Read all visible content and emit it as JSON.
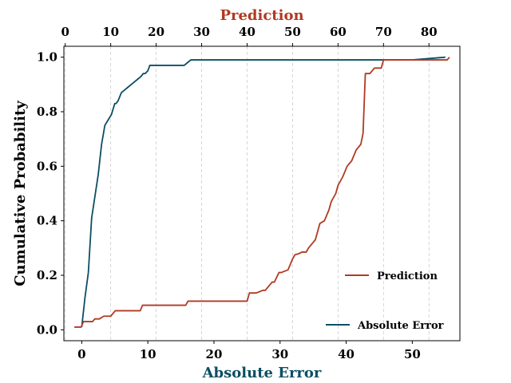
{
  "chart_data": {
    "type": "line",
    "xlabel": "Absolute Error",
    "x2label": "Prediction",
    "ylabel": "Cumulative Probability",
    "xlim": [
      -2.7,
      57.2
    ],
    "x2lim": [
      -0.3,
      86.8
    ],
    "ylim": [
      -0.04,
      1.04
    ],
    "xticks": [
      0,
      10,
      20,
      30,
      40,
      50
    ],
    "x2ticks": [
      0,
      10,
      20,
      30,
      40,
      50,
      60,
      70,
      80
    ],
    "yticks": [
      0.0,
      0.2,
      0.4,
      0.6,
      0.8,
      1.0
    ],
    "x2grid": true,
    "series": [
      {
        "name": "Absolute Error",
        "axis": "bottom",
        "color": "#0b4f63",
        "legend_position": "lower-right",
        "x": [
          0.0,
          0.5,
          1.0,
          1.5,
          2.0,
          2.5,
          3.0,
          3.5,
          4.0,
          4.5,
          5.0,
          5.2,
          5.5,
          6.0,
          6.5,
          7.0,
          7.5,
          8.0,
          8.5,
          9.0,
          9.3,
          9.6,
          10.0,
          10.3,
          11.0,
          12.0,
          13.0,
          14.0,
          15.0,
          15.5,
          16.0,
          16.5,
          17.0,
          20.0,
          30.0,
          40.0,
          50.0,
          55.0
        ],
        "y": [
          0.01,
          0.12,
          0.21,
          0.41,
          0.49,
          0.57,
          0.68,
          0.75,
          0.77,
          0.79,
          0.83,
          0.83,
          0.84,
          0.87,
          0.88,
          0.89,
          0.9,
          0.91,
          0.92,
          0.93,
          0.94,
          0.94,
          0.95,
          0.97,
          0.97,
          0.97,
          0.97,
          0.97,
          0.97,
          0.97,
          0.98,
          0.99,
          0.99,
          0.99,
          0.99,
          0.99,
          0.99,
          1.0
        ]
      },
      {
        "name": "Prediction",
        "axis": "top",
        "color": "#b03a23",
        "legend_position": "center-right",
        "x": [
          2.0,
          3.5,
          4.0,
          6.0,
          6.5,
          7.5,
          8.5,
          10.0,
          11.0,
          11.5,
          15.0,
          16.5,
          17.0,
          18.0,
          21.0,
          26.5,
          27.0,
          30.0,
          38.0,
          40.0,
          40.5,
          42.0,
          43.5,
          44.0,
          45.5,
          46.0,
          47.0,
          47.5,
          49.0,
          50.0,
          50.5,
          51.5,
          52.0,
          53.0,
          53.5,
          55.0,
          56.0,
          57.0,
          58.0,
          58.5,
          59.5,
          60.0,
          61.0,
          61.5,
          62.0,
          63.0,
          64.0,
          65.0,
          65.5,
          66.0,
          67.0,
          68.0,
          68.5,
          69.5,
          70.0,
          75.0,
          80.0,
          84.0,
          84.5
        ],
        "y": [
          0.01,
          0.01,
          0.03,
          0.03,
          0.04,
          0.04,
          0.05,
          0.05,
          0.07,
          0.07,
          0.07,
          0.07,
          0.09,
          0.09,
          0.09,
          0.09,
          0.105,
          0.105,
          0.105,
          0.105,
          0.135,
          0.135,
          0.145,
          0.145,
          0.175,
          0.175,
          0.21,
          0.21,
          0.22,
          0.26,
          0.275,
          0.28,
          0.285,
          0.285,
          0.3,
          0.33,
          0.39,
          0.4,
          0.44,
          0.47,
          0.5,
          0.53,
          0.56,
          0.58,
          0.6,
          0.62,
          0.66,
          0.68,
          0.72,
          0.94,
          0.94,
          0.96,
          0.96,
          0.96,
          0.99,
          0.99,
          0.99,
          0.99,
          1.0
        ]
      }
    ]
  }
}
